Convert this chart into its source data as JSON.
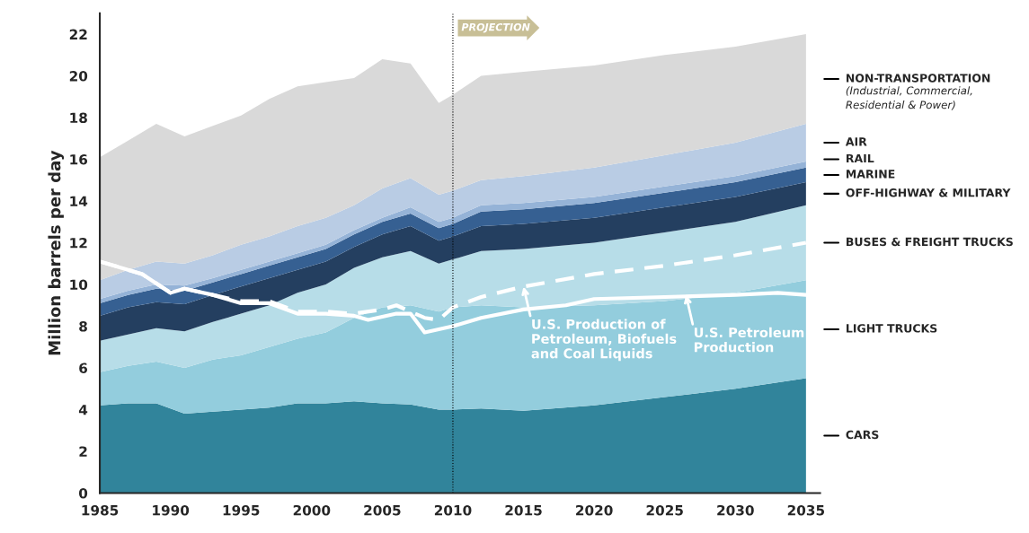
{
  "chart_data": {
    "type": "area",
    "stacked": true,
    "ylabel": "Million barrels per day",
    "x": [
      1985,
      1987,
      1989,
      1991,
      1993,
      1995,
      1997,
      1999,
      2001,
      2003,
      2005,
      2007,
      2009,
      2010,
      2012,
      2015,
      2020,
      2025,
      2030,
      2035
    ],
    "series": [
      {
        "name": "CARS",
        "color": "#31849b",
        "values": [
          4.2,
          4.3,
          4.3,
          3.8,
          3.9,
          4.0,
          4.1,
          4.3,
          4.3,
          4.4,
          4.3,
          4.25,
          4.0,
          4.0,
          4.05,
          3.95,
          4.2,
          4.6,
          5.0,
          5.5
        ]
      },
      {
        "name": "LIGHT TRUCKS",
        "color": "#93cddd",
        "values": [
          1.6,
          1.8,
          2.0,
          2.2,
          2.5,
          2.6,
          2.9,
          3.1,
          3.4,
          4.0,
          4.6,
          4.75,
          4.7,
          4.9,
          4.95,
          4.95,
          4.8,
          4.6,
          4.6,
          4.7
        ]
      },
      {
        "name": "BUSES & FREIGHT TRUCKS",
        "color": "#b7dde8",
        "values": [
          1.5,
          1.5,
          1.6,
          1.75,
          1.8,
          2.0,
          2.0,
          2.2,
          2.3,
          2.4,
          2.4,
          2.6,
          2.3,
          2.3,
          2.6,
          2.8,
          3.0,
          3.3,
          3.4,
          3.6
        ]
      },
      {
        "name": "OFF-HIGHWAY & MILITARY",
        "color": "#243f60",
        "values": [
          1.2,
          1.3,
          1.25,
          1.3,
          1.3,
          1.3,
          1.3,
          1.1,
          1.1,
          1.0,
          1.1,
          1.2,
          1.1,
          1.1,
          1.2,
          1.2,
          1.2,
          1.2,
          1.2,
          1.1
        ]
      },
      {
        "name": "MARINE",
        "color": "#366092",
        "values": [
          0.6,
          0.6,
          0.65,
          0.65,
          0.6,
          0.6,
          0.6,
          0.6,
          0.6,
          0.6,
          0.6,
          0.6,
          0.6,
          0.6,
          0.7,
          0.7,
          0.7,
          0.7,
          0.7,
          0.7
        ]
      },
      {
        "name": "RAIL",
        "color": "#95b3d7",
        "values": [
          0.2,
          0.2,
          0.2,
          0.25,
          0.2,
          0.2,
          0.2,
          0.2,
          0.2,
          0.2,
          0.2,
          0.3,
          0.3,
          0.3,
          0.3,
          0.3,
          0.3,
          0.3,
          0.3,
          0.3
        ]
      },
      {
        "name": "AIR",
        "color": "#b9cce4",
        "values": [
          0.9,
          1.0,
          1.1,
          1.05,
          1.1,
          1.2,
          1.2,
          1.3,
          1.3,
          1.2,
          1.4,
          1.4,
          1.3,
          1.3,
          1.2,
          1.3,
          1.4,
          1.5,
          1.6,
          1.8
        ]
      },
      {
        "name": "NON-TRANSPORTATION",
        "color": "#d9d9d9",
        "values": [
          5.9,
          6.2,
          6.6,
          6.1,
          6.2,
          6.2,
          6.6,
          6.7,
          6.5,
          6.1,
          6.2,
          5.5,
          4.4,
          4.6,
          5.0,
          5.0,
          4.9,
          4.8,
          4.6,
          4.3
        ]
      },
      {
        "type": "line",
        "color": "#ffffff",
        "line_style": "dashed",
        "x": [
          1985,
          1987,
          1988,
          1990,
          1991,
          1993,
          1995,
          1997,
          1999,
          2001,
          2003,
          2005,
          2006,
          2008,
          2009,
          2010,
          2012,
          2015,
          2020,
          2025,
          2030,
          2035
        ],
        "values": [
          11.1,
          10.7,
          10.5,
          9.6,
          9.8,
          9.5,
          9.2,
          9.2,
          8.7,
          8.7,
          8.6,
          8.8,
          9.0,
          8.4,
          8.3,
          8.9,
          9.4,
          9.9,
          10.5,
          10.9,
          11.4,
          12.0
        ]
      },
      {
        "type": "line",
        "color": "#ffffff",
        "line_style": "solid",
        "x": [
          1985,
          1987,
          1988,
          1990,
          1991,
          1993,
          1995,
          1997,
          1999,
          2001,
          2003,
          2004,
          2006,
          2007,
          2008,
          2010,
          2012,
          2015,
          2018,
          2020,
          2025,
          2030,
          2033,
          2035
        ],
        "values": [
          11.1,
          10.7,
          10.5,
          9.6,
          9.8,
          9.5,
          9.1,
          9.1,
          8.6,
          8.6,
          8.5,
          8.3,
          8.6,
          8.6,
          7.7,
          8.0,
          8.4,
          8.8,
          9.0,
          9.3,
          9.4,
          9.5,
          9.6,
          9.5
        ]
      }
    ],
    "xlim": [
      1985,
      2036
    ],
    "xticks": [
      1985,
      1990,
      1995,
      2000,
      2005,
      2010,
      2015,
      2020,
      2025,
      2030,
      2035
    ],
    "ylim": [
      0,
      23
    ],
    "yticks": [
      0,
      2,
      4,
      6,
      8,
      10,
      12,
      14,
      16,
      18,
      20,
      22
    ],
    "ref_lines": [
      {
        "axis": "x",
        "value": 2010,
        "line_style": "dotted",
        "color": "#000000"
      }
    ],
    "annotations": [
      "PROJECTION",
      "(Industrial, Commercial,\nResidential & Power)",
      {
        "text": "U.S. Production of\nPetroleum, Biofuels\nand Coal Liquids",
        "x": 2015,
        "y": 9.9
      },
      {
        "text": "U.S. Petroleum\nProduction",
        "x": 2026.5,
        "y": 9.5
      }
    ],
    "grid": false,
    "legend": false
  }
}
